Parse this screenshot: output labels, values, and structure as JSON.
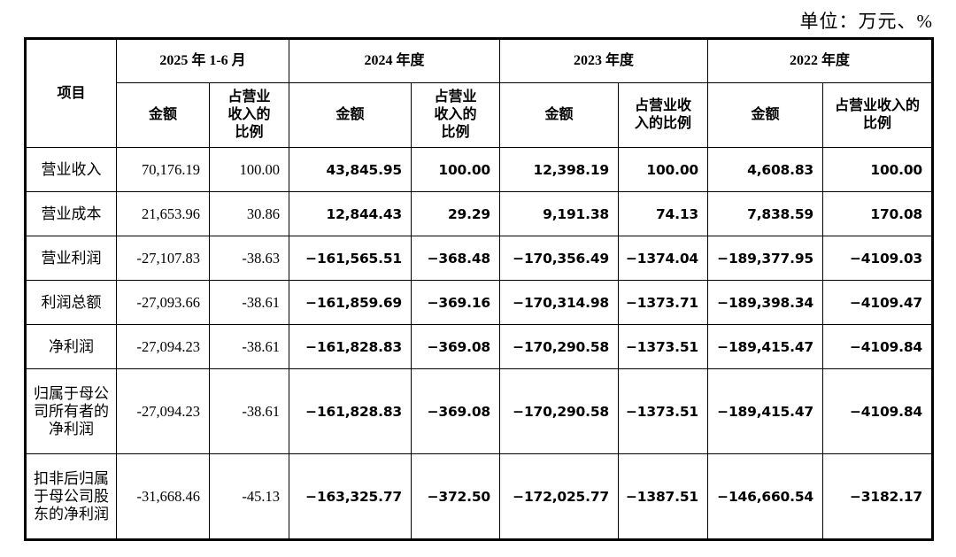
{
  "unit_label": "单位：万元、%",
  "header": {
    "item_label": "项目",
    "periods": [
      "2025 年 1-6 月",
      "2024 年度",
      "2023 年度",
      "2022 年度"
    ],
    "sub_amount": "金额",
    "sub_ratio": [
      "占营业收入的比例",
      "占营业收入的比例",
      "占营业收入的比例",
      "占营业收入的比例"
    ]
  },
  "rows": [
    {
      "label": "营业收入",
      "values": [
        "70,176.19",
        "100.00",
        "43,845.95",
        "100.00",
        "12,398.19",
        "100.00",
        "4,608.83",
        "100.00"
      ]
    },
    {
      "label": "营业成本",
      "values": [
        "21,653.96",
        "30.86",
        "12,844.43",
        "29.29",
        "9,191.38",
        "74.13",
        "7,838.59",
        "170.08"
      ]
    },
    {
      "label": "营业利润",
      "values": [
        "-27,107.83",
        "-38.63",
        "−161,565.51",
        "−368.48",
        "−170,356.49",
        "−1374.04",
        "−189,377.95",
        "−4109.03"
      ]
    },
    {
      "label": "利润总额",
      "values": [
        "-27,093.66",
        "-38.61",
        "−161,859.69",
        "−369.16",
        "−170,314.98",
        "−1373.71",
        "−189,398.34",
        "−4109.47"
      ]
    },
    {
      "label": "净利润",
      "values": [
        "-27,094.23",
        "-38.61",
        "−161,828.83",
        "−369.08",
        "−170,290.58",
        "−1373.51",
        "−189,415.47",
        "−4109.84"
      ]
    },
    {
      "label": "归属于母公司所有者的净利润",
      "values": [
        "-27,094.23",
        "-38.61",
        "−161,828.83",
        "−369.08",
        "−170,290.58",
        "−1373.51",
        "−189,415.47",
        "−4109.84"
      ]
    },
    {
      "label": "扣非后归属于母公司股东的净利润",
      "values": [
        "-31,668.46",
        "-45.13",
        "−163,325.77",
        "−372.50",
        "−172,025.77",
        "−1387.51",
        "−146,660.54",
        "−3182.17"
      ]
    }
  ]
}
